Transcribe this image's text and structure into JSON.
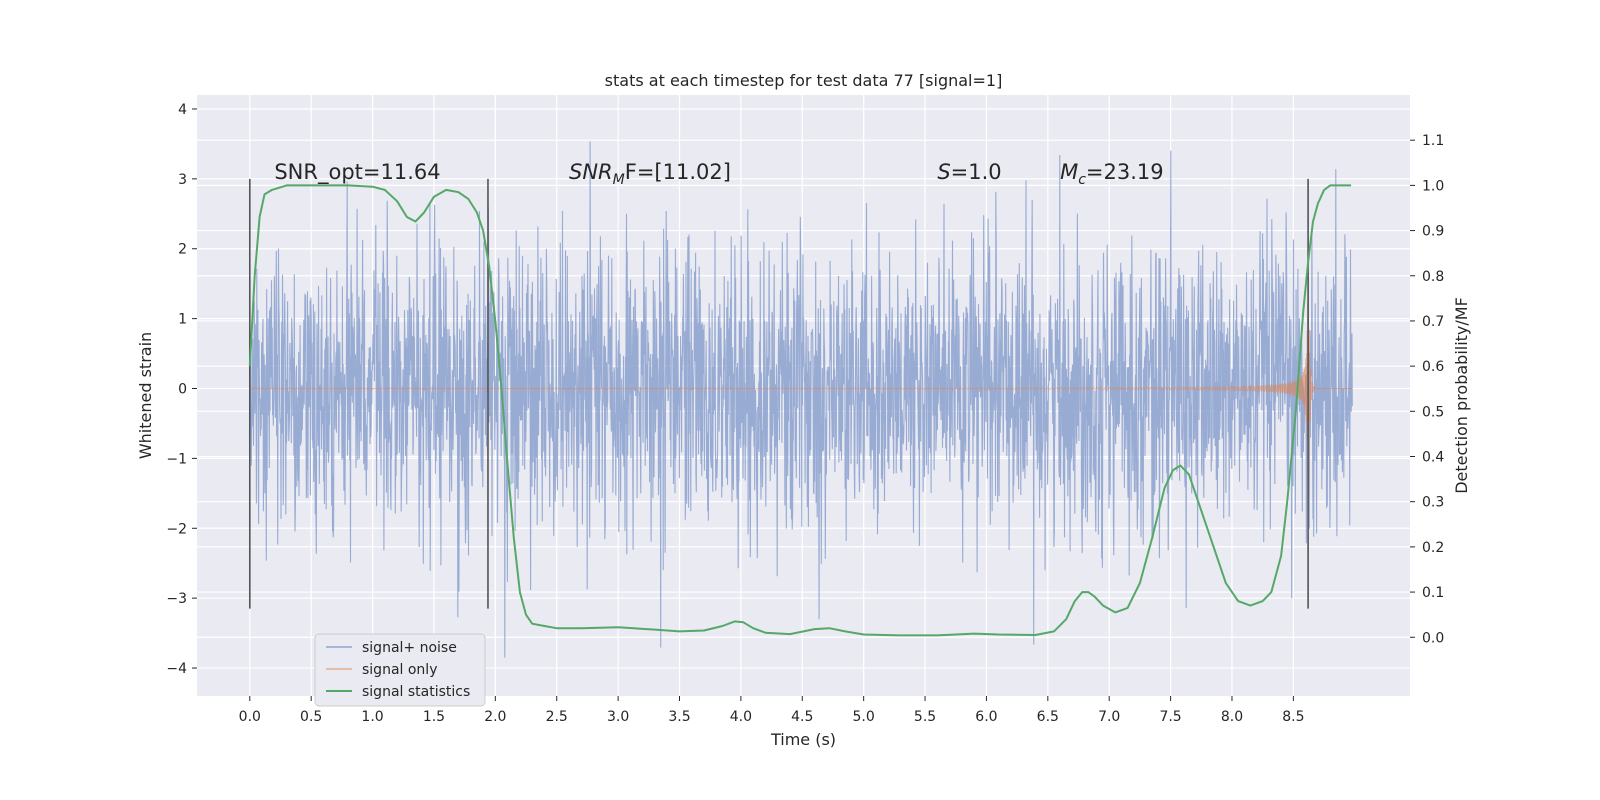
{
  "chart_data": {
    "type": "line",
    "title": "stats at each timestep for test data 77 [signal=1]",
    "xlabel": "Time (s)",
    "ylabel": "Whitened strain",
    "ylabel_right": "Detection probability/MF",
    "xlim": [
      -0.43,
      9.45
    ],
    "ylim": [
      -4.4,
      4.2
    ],
    "ylim_right": [
      -0.13,
      1.2
    ],
    "xticks": [
      "0.0",
      "0.5",
      "1.0",
      "1.5",
      "2.0",
      "2.5",
      "3.0",
      "3.5",
      "4.0",
      "4.5",
      "5.0",
      "5.5",
      "6.0",
      "6.5",
      "7.0",
      "7.5",
      "8.0",
      "8.5"
    ],
    "yticks": [
      "4",
      "3",
      "2",
      "1",
      "0",
      "−1",
      "−2",
      "−3",
      "−4"
    ],
    "yticks_right": [
      "1.1",
      "1.0",
      "0.9",
      "0.8",
      "0.7",
      "0.6",
      "0.5",
      "0.4",
      "0.3",
      "0.2",
      "0.1",
      "0.0"
    ],
    "annotations": [
      {
        "label": "SNR_opt=11.64",
        "x": 0.2,
        "y": 3.0
      },
      {
        "label_main": "SNR",
        "label_sub": "M",
        "label_rest": "F=[11.02]",
        "x": 2.6,
        "y": 3.0
      },
      {
        "label_main": "S",
        "label_rest": "=1.0",
        "x": 5.6,
        "y": 3.0
      },
      {
        "label_main": "M",
        "label_sub": "c",
        "label_rest": "=23.19",
        "x": 6.6,
        "y": 3.0
      }
    ],
    "vlines": [
      0.0,
      1.94,
      8.62
    ],
    "vline_range": [
      -3.15,
      3.0
    ],
    "series": [
      {
        "name": "signal+ noise",
        "color": "#8fa4cf",
        "kind": "noise",
        "x_range": [
          0.0,
          8.98
        ],
        "std": 1.0
      },
      {
        "name": "signal only",
        "color": "#dd8452",
        "kind": "chirp",
        "x_range": [
          0.0,
          8.98
        ],
        "merger": 8.62
      },
      {
        "name": "signal statistics",
        "color": "#55a868",
        "axis": "right",
        "x": [
          0.0,
          0.04,
          0.08,
          0.12,
          0.18,
          0.3,
          0.5,
          0.8,
          1.0,
          1.1,
          1.2,
          1.28,
          1.35,
          1.42,
          1.5,
          1.6,
          1.7,
          1.78,
          1.85,
          1.9,
          1.95,
          2.0,
          2.05,
          2.1,
          2.15,
          2.2,
          2.25,
          2.3,
          2.4,
          2.5,
          2.7,
          3.0,
          3.3,
          3.5,
          3.7,
          3.85,
          3.95,
          4.02,
          4.1,
          4.2,
          4.4,
          4.6,
          4.72,
          4.85,
          5.0,
          5.3,
          5.6,
          5.9,
          6.1,
          6.4,
          6.55,
          6.65,
          6.72,
          6.78,
          6.83,
          6.88,
          6.95,
          7.05,
          7.15,
          7.25,
          7.35,
          7.45,
          7.52,
          7.58,
          7.65,
          7.75,
          7.85,
          7.95,
          8.05,
          8.15,
          8.25,
          8.32,
          8.4,
          8.45,
          8.52,
          8.58,
          8.62,
          8.66,
          8.7,
          8.75,
          8.8,
          8.85,
          8.9,
          8.97
        ],
        "y": [
          0.6,
          0.8,
          0.93,
          0.98,
          0.99,
          1.0,
          1.0,
          1.0,
          0.997,
          0.99,
          0.965,
          0.93,
          0.92,
          0.94,
          0.975,
          0.99,
          0.985,
          0.97,
          0.94,
          0.9,
          0.82,
          0.7,
          0.55,
          0.38,
          0.22,
          0.1,
          0.05,
          0.03,
          0.025,
          0.02,
          0.02,
          0.022,
          0.017,
          0.013,
          0.015,
          0.025,
          0.035,
          0.033,
          0.02,
          0.01,
          0.007,
          0.018,
          0.02,
          0.013,
          0.006,
          0.004,
          0.004,
          0.008,
          0.006,
          0.005,
          0.013,
          0.04,
          0.08,
          0.1,
          0.1,
          0.09,
          0.07,
          0.055,
          0.065,
          0.12,
          0.22,
          0.33,
          0.37,
          0.38,
          0.36,
          0.28,
          0.2,
          0.12,
          0.08,
          0.07,
          0.08,
          0.1,
          0.18,
          0.3,
          0.5,
          0.72,
          0.83,
          0.92,
          0.96,
          0.99,
          1.0,
          1.0,
          1.0,
          1.0
        ]
      }
    ]
  }
}
